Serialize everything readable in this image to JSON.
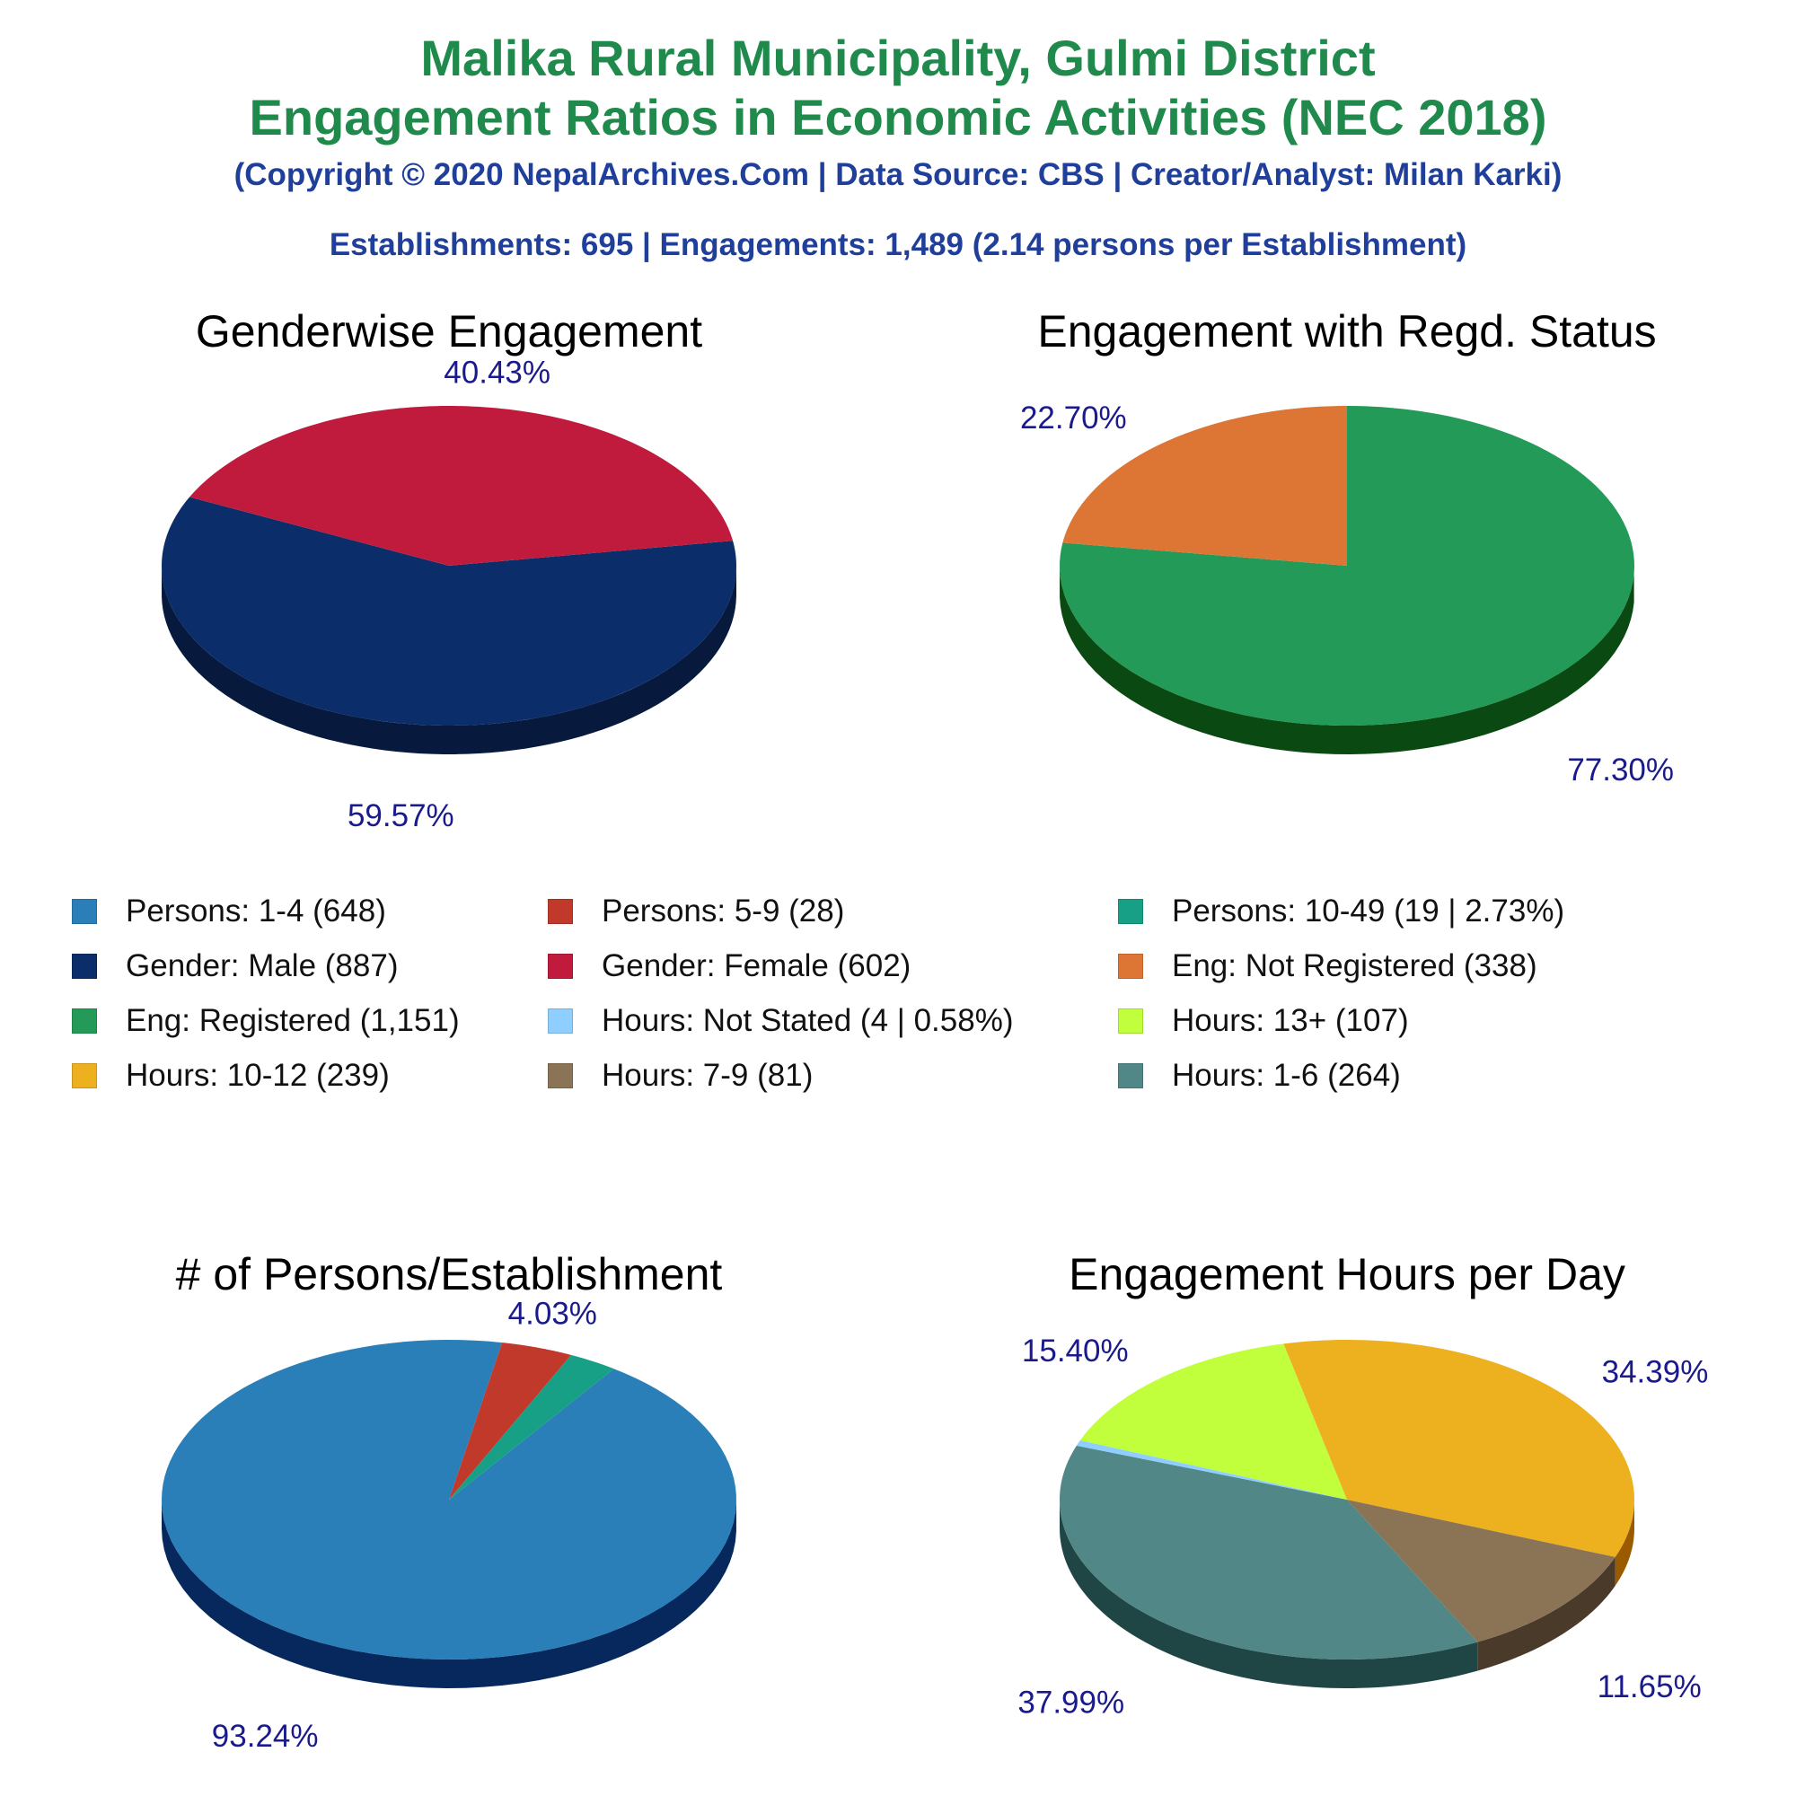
{
  "header": {
    "title_line1": "Malika Rural Municipality, Gulmi District",
    "title_line2": "Engagement Ratios in Economic Activities (NEC 2018)",
    "copyright": "(Copyright © 2020 NepalArchives.Com | Data Source: CBS | Creator/Analyst: Milan Karki)",
    "summary": "Establishments: 695 | Engagements: 1,489 (2.14 persons per Establishment)"
  },
  "colors": {
    "title": "#1f8a4c",
    "subtitle": "#1f3f9a",
    "percent_label": "#1a1a8c"
  },
  "legend": [
    {
      "label": "Persons: 1-4 (648)",
      "color": "#2a7fb8"
    },
    {
      "label": "Persons: 5-9 (28)",
      "color": "#c0392b"
    },
    {
      "label": "Persons: 10-49 (19 | 2.73%)",
      "color": "#17a085"
    },
    {
      "label": "Gender: Male (887)",
      "color": "#0b2d69"
    },
    {
      "label": "Gender: Female (602)",
      "color": "#c01a3c"
    },
    {
      "label": "Eng: Not Registered (338)",
      "color": "#dd7634"
    },
    {
      "label": "Eng: Registered (1,151)",
      "color": "#239a57"
    },
    {
      "label": "Hours: Not Stated (4 | 0.58%)",
      "color": "#8ecfff"
    },
    {
      "label": "Hours: 13+ (107)",
      "color": "#c1ff3c"
    },
    {
      "label": "Hours: 10-12 (239)",
      "color": "#edb120"
    },
    {
      "label": "Hours: 7-9 (81)",
      "color": "#8b7355"
    },
    {
      "label": "Hours: 1-6 (264)",
      "color": "#528787"
    }
  ],
  "chart_data": [
    {
      "type": "pie",
      "title": "Genderwise Engagement",
      "labels": [
        "Gender: Male",
        "Gender: Female"
      ],
      "values": [
        887,
        602
      ],
      "colors": [
        "#0b2d69",
        "#c01a3c"
      ],
      "side_colors": [
        "#071a3d",
        "#680000"
      ],
      "percent_labels": [
        "59.57%",
        "40.43%"
      ],
      "start_angle": 9
    },
    {
      "type": "pie",
      "title": "Engagement with Regd. Status",
      "labels": [
        "Eng: Registered",
        "Eng: Not Registered"
      ],
      "values": [
        1151,
        338
      ],
      "colors": [
        "#239a57",
        "#dd7634"
      ],
      "side_colors": [
        "#0a4a12",
        "#7a1c00"
      ],
      "percent_labels": [
        "77.30%",
        "22.70%"
      ],
      "start_angle": 90
    },
    {
      "type": "pie",
      "title": "# of Persons/Establishment",
      "labels": [
        "Persons: 1-4",
        "Persons: 5-9",
        "Persons: 10-49"
      ],
      "values": [
        648,
        28,
        19
      ],
      "colors": [
        "#2a7fb8",
        "#c0392b",
        "#17a085"
      ],
      "side_colors": [
        "#06285c",
        "#6a0000",
        "#0a4a3a"
      ],
      "percent_labels": [
        "93.24%",
        "4.03%",
        ""
      ],
      "start_angle": 55
    },
    {
      "type": "pie",
      "title": "Engagement Hours per Day",
      "labels": [
        "Hours: 1-6",
        "Hours: Not Stated",
        "Hours: 13+",
        "Hours: 10-12",
        "Hours: 7-9"
      ],
      "values": [
        264,
        4,
        107,
        239,
        81
      ],
      "colors": [
        "#528787",
        "#8ecfff",
        "#c1ff3c",
        "#edb120",
        "#8b7355"
      ],
      "side_colors": [
        "#1f4545",
        "#3a6a9a",
        "#5a9a00",
        "#9a5a00",
        "#4a3a2a"
      ],
      "percent_labels": [
        "37.99%",
        "",
        "15.40%",
        "34.39%",
        "11.65%"
      ],
      "start_angle": -63
    }
  ]
}
